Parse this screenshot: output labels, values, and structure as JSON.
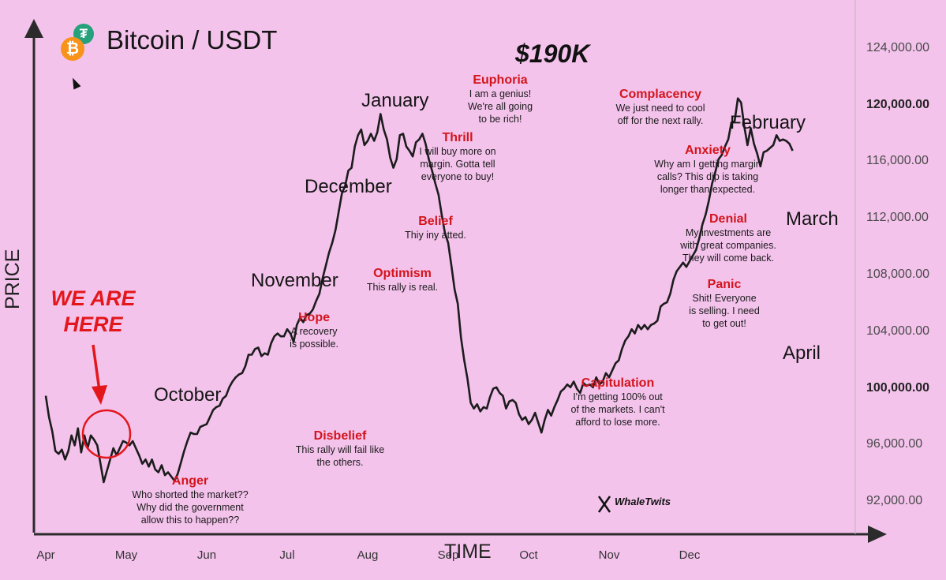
{
  "header": {
    "title": "Bitcoin / USDT",
    "icons": [
      "usdt-icon",
      "bitcoin-icon",
      "cursor-icon"
    ]
  },
  "labels": {
    "peak_price": "$190K",
    "we_are_here_line1": "WE ARE",
    "we_are_here_line2": "HERE",
    "watermark": "WhaleTwits"
  },
  "month_words": [
    "October",
    "November",
    "December",
    "January",
    "February",
    "March",
    "April"
  ],
  "emotions": [
    {
      "name": "Anger",
      "lines": [
        "Who shorted the market??",
        "Why did the government",
        "allow this to happen??"
      ]
    },
    {
      "name": "Disbelief",
      "lines": [
        "This rally will fail like",
        "the others."
      ]
    },
    {
      "name": "Hope",
      "lines": [
        "A recovery",
        "is possible."
      ]
    },
    {
      "name": "Optimism",
      "lines": [
        "This rally is real."
      ]
    },
    {
      "name": "Belief",
      "lines": [
        "Thiy iny atted."
      ]
    },
    {
      "name": "Thrill",
      "lines": [
        "I will buy more on",
        "margin. Gotta tell",
        "everyone to buy!"
      ]
    },
    {
      "name": "Euphoria",
      "lines": [
        "I am a genius!",
        "We're all going",
        "to be rich!"
      ]
    },
    {
      "name": "Complacency",
      "lines": [
        "We just need to cool",
        "off for the next rally."
      ]
    },
    {
      "name": "Anxiety",
      "lines": [
        "Why am I getting margin",
        "calls? This dip is taking",
        "longer than expected."
      ]
    },
    {
      "name": "Denial",
      "lines": [
        "My investments are",
        "with great companies.",
        "They will come back."
      ]
    },
    {
      "name": "Panic",
      "lines": [
        "Shit! Everyone",
        "is selling. I need",
        "to get out!"
      ]
    },
    {
      "name": "Capitulation",
      "lines": [
        "I'm getting 100% out",
        "of the markets. I can't",
        "afford to lose more."
      ]
    }
  ],
  "colors": {
    "background": "#f4c3ec",
    "line": "#1c1c1c",
    "emotion_name": "#d3141c",
    "here_marker": "#e3171b"
  },
  "chart_data": {
    "type": "line",
    "title": "Bitcoin / USDT",
    "xlabel": "TIME",
    "ylabel": "PRICE",
    "x_ticks": [
      "Apr",
      "May",
      "Jun",
      "Jul",
      "Aug",
      "Sep",
      "Oct",
      "Nov",
      "Dec"
    ],
    "y_ticks": [
      "124,000.00",
      "120,000.00",
      "116,000.00",
      "112,000.00",
      "108,000.00",
      "104,000.00",
      "100,000.00",
      "96,000.00",
      "92,000.00"
    ],
    "y_ticks_bold": [
      "120,000.00",
      "100,000.00"
    ],
    "ylim": [
      89000,
      127000
    ],
    "grid": false,
    "series": [
      {
        "x": [
          0,
          0.04,
          0.08,
          0.12,
          0.16,
          0.2,
          0.24,
          0.28,
          0.32,
          0.36,
          0.4,
          0.44,
          0.48,
          0.52,
          0.56,
          0.6,
          0.64,
          0.68,
          0.72,
          0.76,
          0.8,
          0.84,
          0.88,
          0.92,
          0.96,
          1.0,
          1.04,
          1.08,
          1.12,
          1.16,
          1.2,
          1.24,
          1.28,
          1.32,
          1.36,
          1.4,
          1.44,
          1.48,
          1.52,
          1.56,
          1.6,
          1.64,
          1.68,
          1.72,
          1.76,
          1.8,
          1.84,
          1.88,
          1.92,
          1.96,
          2.0,
          2.04,
          2.08,
          2.12,
          2.16,
          2.2,
          2.24,
          2.28,
          2.32,
          2.36,
          2.4,
          2.44,
          2.48,
          2.52,
          2.56,
          2.6,
          2.64,
          2.68,
          2.72,
          2.76,
          2.8,
          2.84,
          2.88,
          2.92,
          2.96,
          3.0,
          3.04,
          3.08,
          3.12,
          3.16,
          3.2,
          3.24,
          3.28,
          3.32,
          3.36,
          3.4,
          3.44,
          3.48,
          3.52,
          3.56,
          3.6,
          3.64,
          3.68,
          3.72,
          3.76,
          3.8,
          3.84,
          3.88,
          3.92,
          3.96,
          4.0,
          4.04,
          4.08,
          4.12,
          4.16,
          4.2,
          4.24,
          4.28,
          4.32,
          4.36,
          4.4,
          4.44,
          4.48,
          4.52,
          4.56,
          4.6,
          4.64,
          4.68,
          4.72,
          4.76,
          4.8,
          4.84,
          4.88,
          4.92,
          4.96,
          5.0,
          5.04,
          5.08,
          5.12,
          5.16,
          5.2,
          5.24,
          5.28,
          5.32,
          5.36,
          5.4,
          5.44,
          5.48,
          5.52,
          5.56,
          5.6,
          5.64,
          5.68,
          5.72,
          5.76,
          5.8,
          5.84,
          5.88,
          5.92,
          5.96,
          6.0,
          6.04,
          6.08,
          6.12,
          6.16,
          6.2,
          6.24,
          6.28,
          6.32,
          6.36,
          6.4,
          6.44,
          6.48,
          6.52,
          6.56,
          6.6,
          6.64,
          6.68,
          6.72,
          6.76,
          6.8,
          6.84,
          6.88,
          6.92,
          6.96,
          7.0,
          7.04,
          7.08,
          7.12,
          7.16,
          7.2,
          7.24,
          7.28,
          7.32,
          7.36,
          7.4,
          7.44,
          7.48,
          7.52,
          7.56,
          7.6,
          7.64,
          7.68,
          7.72,
          7.76,
          7.8,
          7.84,
          7.88,
          7.92,
          7.96,
          8.0,
          8.04,
          8.08,
          8.12,
          8.16,
          8.2,
          8.24,
          8.28,
          8.32,
          8.36,
          8.4,
          8.44,
          8.48,
          8.52,
          8.56,
          8.6,
          8.64,
          8.68,
          8.72,
          8.76,
          8.8,
          8.84,
          8.88,
          8.92,
          8.96,
          9.0,
          9.04,
          9.08,
          9.12,
          9.16,
          9.2,
          9.24,
          9.28
        ],
        "y": [
          99500,
          98000,
          97000,
          95600,
          95400,
          95700,
          95000,
          95600,
          96700,
          96000,
          97200,
          95500,
          96700,
          95800,
          96700,
          96400,
          96000,
          94700,
          93400,
          94200,
          95000,
          95800,
          95300,
          95800,
          96300,
          96200,
          96000,
          96300,
          95800,
          95300,
          94700,
          95000,
          94500,
          95000,
          94300,
          94100,
          94600,
          93900,
          94100,
          93800,
          93500,
          94000,
          94800,
          95600,
          96300,
          96900,
          96800,
          96800,
          97300,
          97400,
          97500,
          98000,
          98500,
          98700,
          98800,
          99300,
          99500,
          100100,
          100500,
          100800,
          101000,
          101100,
          101600,
          102400,
          102400,
          102800,
          102900,
          102300,
          102500,
          102400,
          103200,
          103700,
          103900,
          103700,
          103700,
          104200,
          103900,
          103300,
          104500,
          105000,
          104700,
          105200,
          105300,
          105600,
          106200,
          106700,
          107800,
          108700,
          109600,
          110300,
          111200,
          112500,
          113800,
          114300,
          115400,
          115600,
          117100,
          117900,
          118300,
          117200,
          117500,
          118000,
          117500,
          118100,
          119400,
          118300,
          117600,
          116300,
          115600,
          116200,
          117900,
          118000,
          117100,
          116800,
          116400,
          117400,
          117600,
          118000,
          117300,
          116200,
          115400,
          114500,
          113700,
          112300,
          111000,
          110300,
          108700,
          107000,
          106000,
          103600,
          102000,
          100700,
          99000,
          98600,
          98900,
          98400,
          98700,
          98600,
          99400,
          100000,
          100100,
          99700,
          99500,
          98600,
          99100,
          99200,
          99000,
          98200,
          97800,
          98000,
          97500,
          97800,
          98300,
          97600,
          96900,
          97800,
          98500,
          98100,
          98700,
          99200,
          99800,
          100000,
          100300,
          100100,
          100500,
          100000,
          99700,
          100400,
          100200,
          100300,
          100100,
          100800,
          100300,
          100500,
          101100,
          100800,
          101300,
          101800,
          102000,
          102800,
          103400,
          103700,
          104200,
          103900,
          104500,
          104200,
          104500,
          104200,
          104500,
          104600,
          104800,
          105800,
          106000,
          106100,
          106700,
          107700,
          108300,
          108600,
          108900,
          108600,
          109000,
          109400,
          109800,
          110600,
          111600,
          112300,
          113300,
          114500,
          115300,
          116200,
          116500,
          117100,
          117600,
          118800,
          118900,
          120500,
          120200,
          118500,
          117200,
          118400,
          117300,
          116600,
          115700,
          116700,
          116800,
          117000,
          117200,
          117900,
          117500,
          117600,
          117500,
          117300,
          116800
        ]
      }
    ]
  }
}
